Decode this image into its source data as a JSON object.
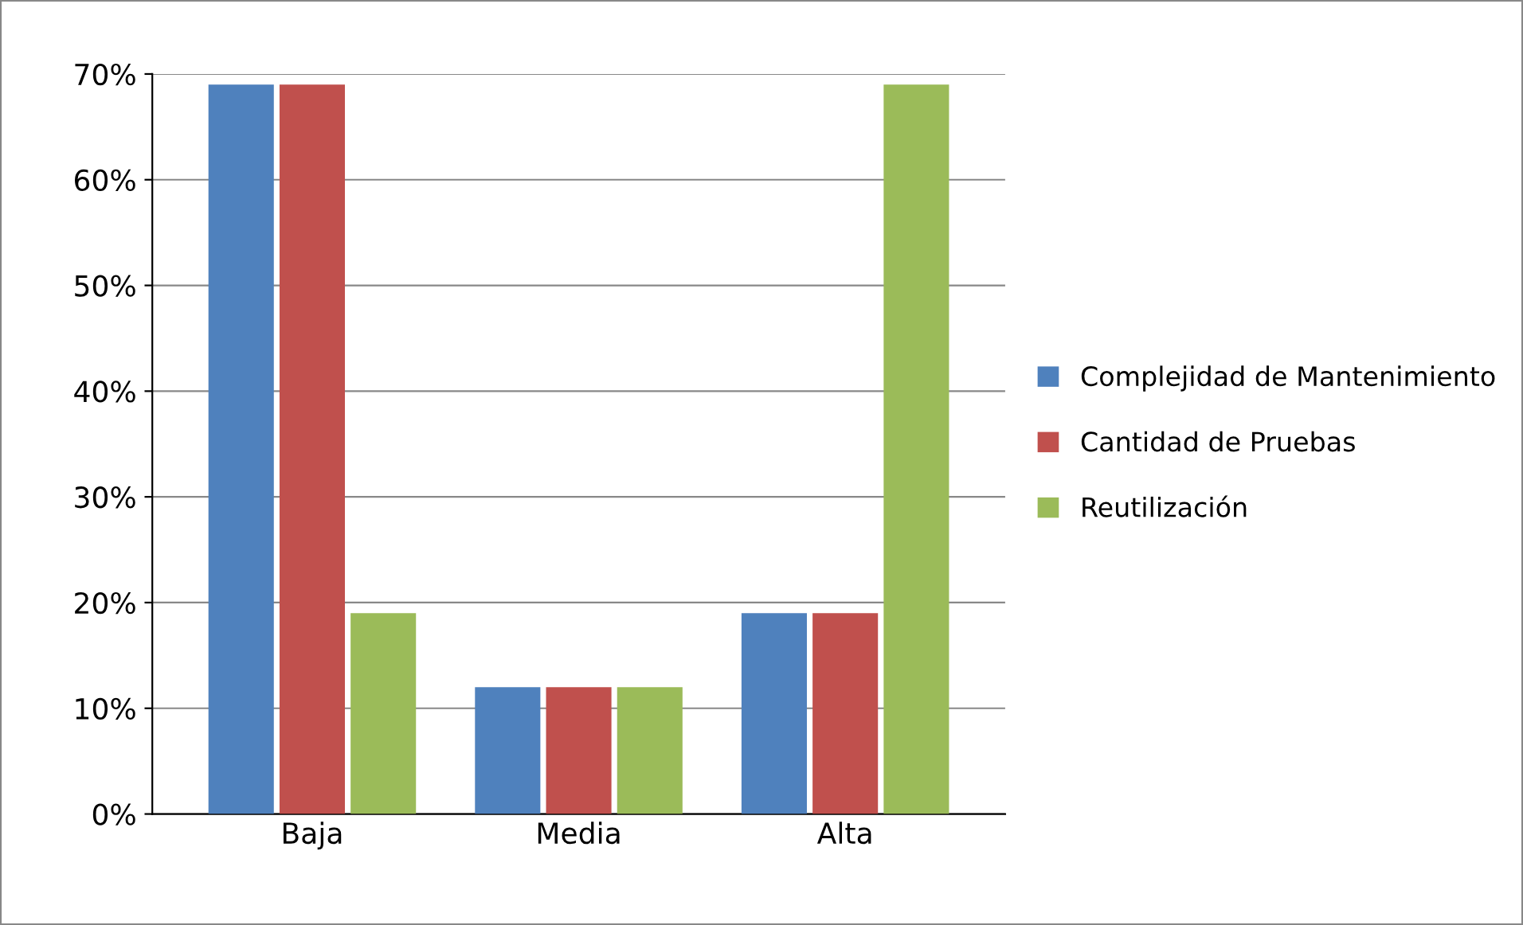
{
  "chart_data": {
    "type": "bar",
    "categories": [
      "Baja",
      "Media",
      "Alta"
    ],
    "series": [
      {
        "name": "Complejidad de Mantenimiento",
        "color": "#4f81bd",
        "values": [
          69,
          12,
          19
        ]
      },
      {
        "name": "Cantidad de Pruebas",
        "color": "#c0504d",
        "values": [
          69,
          12,
          19
        ]
      },
      {
        "name": "Reutilización",
        "color": "#9bbb59",
        "values": [
          19,
          12,
          69
        ]
      }
    ],
    "ylim": [
      0,
      70
    ],
    "yticks": [
      {
        "value": 0,
        "label": "0%"
      },
      {
        "value": 10,
        "label": "10%"
      },
      {
        "value": 20,
        "label": "20%"
      },
      {
        "value": 30,
        "label": "30%"
      },
      {
        "value": 40,
        "label": "40%"
      },
      {
        "value": 50,
        "label": "50%"
      },
      {
        "value": 60,
        "label": "60%"
      },
      {
        "value": 70,
        "label": "70%"
      }
    ],
    "grid": "y",
    "legend": "right"
  }
}
